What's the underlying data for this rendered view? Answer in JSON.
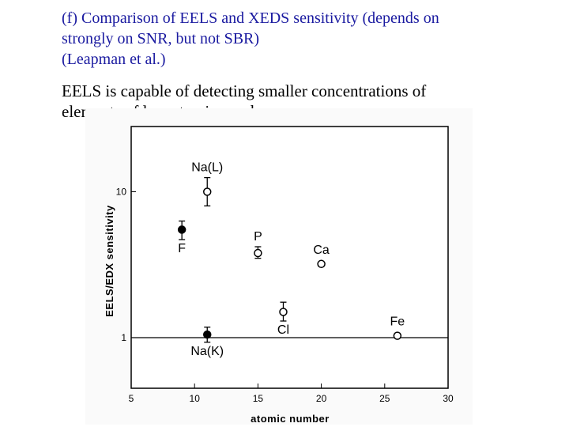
{
  "slide": {
    "heading_lines": [
      "(f) Comparison of EELS and XEDS sensitivity (depends on",
      "strongly on SNR, but not SBR)",
      "(Leapman et al.)"
    ],
    "body_lines": [
      "EELS is capable of detecting smaller concentrations of",
      "elements of low atomic number"
    ]
  },
  "chart_data": {
    "type": "scatter",
    "xlabel": "atomic number",
    "ylabel": "EELS/EDX sensitivity",
    "xlim": [
      5,
      30
    ],
    "ylim": [
      0.45,
      28
    ],
    "yscale": "log",
    "x_ticks": [
      "5",
      "10",
      "15",
      "20",
      "25",
      "30"
    ],
    "y_ticks": [
      {
        "value": 1,
        "label": "1"
      },
      {
        "value": 10,
        "label": "10"
      }
    ],
    "reference_line": 1.0,
    "grid": false,
    "points": [
      {
        "label": "Na(L)",
        "x": 11,
        "y": 10.0,
        "lo": 8.0,
        "hi": 12.5,
        "marker": "open",
        "label_pos": "above"
      },
      {
        "label": "F",
        "x": 9,
        "y": 5.5,
        "lo": 4.7,
        "hi": 6.3,
        "marker": "filled",
        "label_pos": "below"
      },
      {
        "label": "P",
        "x": 15,
        "y": 3.8,
        "lo": 3.5,
        "hi": 4.2,
        "marker": "open",
        "label_pos": "above"
      },
      {
        "label": "Ca",
        "x": 20,
        "y": 3.2,
        "marker": "open",
        "label_pos": "above"
      },
      {
        "label": "Cl",
        "x": 17,
        "y": 1.5,
        "lo": 1.3,
        "hi": 1.75,
        "marker": "open",
        "label_pos": "below"
      },
      {
        "label": "Fe",
        "x": 26,
        "y": 1.03,
        "marker": "open",
        "label_pos": "above"
      },
      {
        "label": "Na(K)",
        "x": 11,
        "y": 1.05,
        "lo": 0.93,
        "hi": 1.18,
        "marker": "filled",
        "label_pos": "below"
      }
    ]
  }
}
